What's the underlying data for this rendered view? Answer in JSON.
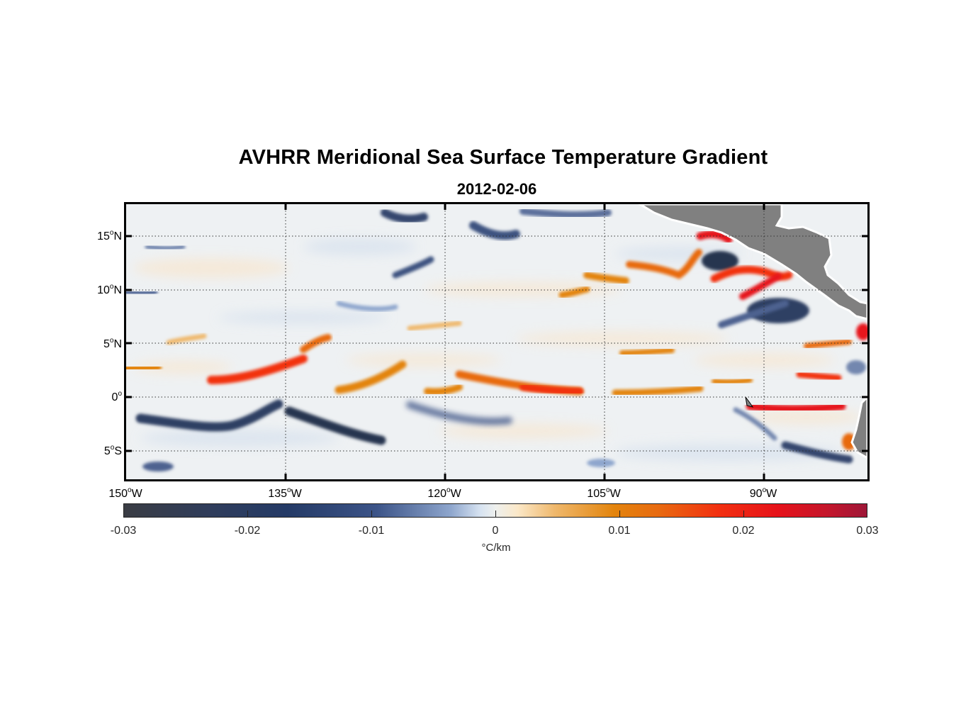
{
  "title": "AVHRR Meridional Sea Surface Temperature Gradient",
  "subtitle": "2012-02-06",
  "map": {
    "lon_range": [
      -150,
      -80
    ],
    "lat_range": [
      -8,
      18
    ],
    "lon_ticks": [
      {
        "deg": "150",
        "hemi": "W"
      },
      {
        "deg": "135",
        "hemi": "W"
      },
      {
        "deg": "120",
        "hemi": "W"
      },
      {
        "deg": "105",
        "hemi": "W"
      },
      {
        "deg": "90",
        "hemi": "W"
      }
    ],
    "lat_ticks": [
      {
        "deg": "15",
        "hemi": "N"
      },
      {
        "deg": "10",
        "hemi": "N"
      },
      {
        "deg": "5",
        "hemi": "N"
      },
      {
        "deg": "0",
        "hemi": ""
      },
      {
        "deg": "5",
        "hemi": "S"
      }
    ],
    "degree_symbol": "o",
    "land_color": "#808080",
    "ocean_background": "#eef1f3",
    "features": [
      {
        "kind": "positive",
        "name": "equatorial-front-west",
        "lon": [
          -146,
          -132
        ],
        "lat": [
          1,
          4
        ]
      },
      {
        "kind": "positive",
        "name": "equatorial-front-central",
        "lon": [
          -131,
          -124
        ],
        "lat": [
          0,
          4
        ]
      },
      {
        "kind": "positive",
        "name": "equatorial-front-east",
        "lon": [
          -118,
          -108
        ],
        "lat": [
          0,
          2
        ]
      },
      {
        "kind": "positive",
        "name": "coastal-upwelling",
        "lon": [
          -95,
          -86
        ],
        "lat": [
          8,
          16
        ]
      },
      {
        "kind": "positive",
        "name": "south-equatorial-front",
        "lon": [
          -91,
          -83
        ],
        "lat": [
          -2,
          0
        ]
      },
      {
        "kind": "negative",
        "name": "south-cold-band-west",
        "lon": [
          -150,
          -138
        ],
        "lat": [
          -3,
          -1
        ]
      },
      {
        "kind": "negative",
        "name": "south-cold-band-central",
        "lon": [
          -135,
          -126
        ],
        "lat": [
          -4,
          -1
        ]
      },
      {
        "kind": "negative",
        "name": "gulf-cold-patch",
        "lon": [
          -93,
          -87
        ],
        "lat": [
          7,
          14
        ]
      }
    ]
  },
  "colorbar": {
    "ticks": [
      "-0.03",
      "-0.02",
      "-0.01",
      "0",
      "0.01",
      "0.02",
      "0.03"
    ],
    "unit": "°C/km",
    "colors": {
      "strong_negative": "#243a66",
      "weak_negative": "#8ea6cd",
      "neutral": "#eef0ee",
      "weak_positive": "#efb86c",
      "positive": "#e3840d",
      "strong_positive": "#e6121a"
    }
  }
}
